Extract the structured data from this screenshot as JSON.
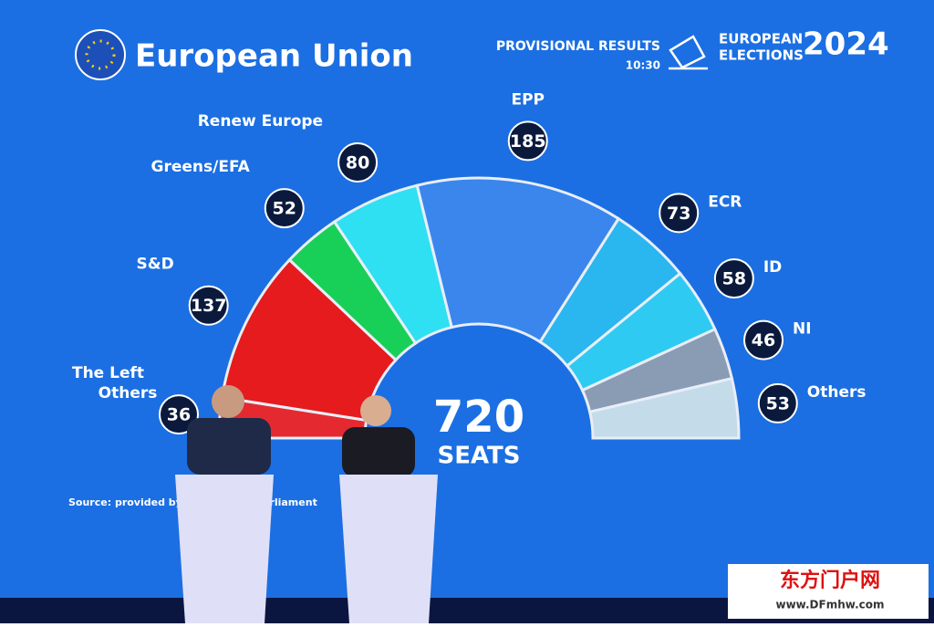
{
  "header": {
    "title": "European Union",
    "status": "PROVISIONAL RESULTS",
    "time": "10:30",
    "event_line1": "EUROPEAN",
    "event_line2": "ELECTIONS",
    "year": "2024"
  },
  "chart_data": {
    "type": "hemicycle",
    "total": "720",
    "total_label": "SEATS",
    "series": [
      {
        "name": "The Left",
        "color": "#e42a30",
        "values": [
          36
        ]
      },
      {
        "name": "S&D",
        "color": "#e51b1e",
        "values": [
          137
        ]
      },
      {
        "name": "Greens/EFA",
        "color": "#18d058",
        "values": [
          52
        ]
      },
      {
        "name": "Renew Europe",
        "color": "#2ee0f2",
        "values": [
          80
        ]
      },
      {
        "name": "EPP",
        "color": "#3a86ec",
        "values": [
          185
        ]
      },
      {
        "name": "ECR",
        "color": "#2ab6ef",
        "values": [
          73
        ]
      },
      {
        "name": "ID",
        "color": "#2fcaf2",
        "values": [
          58
        ]
      },
      {
        "name": "NI",
        "color": "#8a9cb4",
        "values": [
          46
        ]
      },
      {
        "name": "Others",
        "color": "#c4dbea",
        "values": [
          53
        ]
      }
    ],
    "left_label": "Others"
  },
  "source": {
    "part1": "Source: provided by Veri",
    "part2": "arliament"
  },
  "watermark": {
    "title": "东方门户网",
    "url": "www.DFmhw.com"
  }
}
